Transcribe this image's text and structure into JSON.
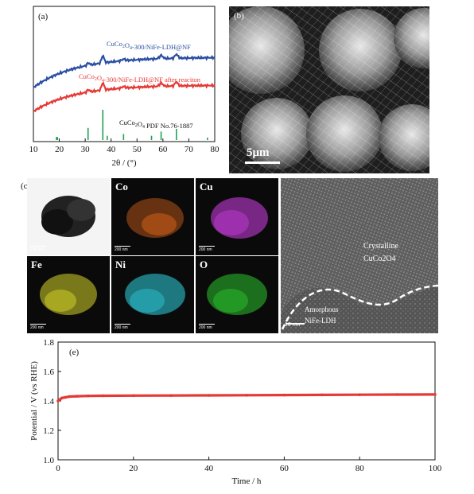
{
  "panel_a": {
    "label": "(a)",
    "xlabel": "2θ / (°)",
    "xlim": [
      10,
      80
    ],
    "xticks": [
      "10",
      "20",
      "30",
      "40",
      "50",
      "60",
      "70",
      "80"
    ],
    "series_labels": [
      {
        "text": "CuCo2O4-300/NiFe-LDH@NF",
        "color": "#2b4ea3"
      },
      {
        "text": "CuCo2O4-300/NiFe-LDH@NF after reaciton",
        "color": "#e53935"
      },
      {
        "text": "CuCo2O4 PDF No.76-1887",
        "color": "#111111"
      }
    ],
    "reference_peaks": [
      {
        "x": 18.9,
        "h": 0.1
      },
      {
        "x": 19.3,
        "h": 0.1
      },
      {
        "x": 31.1,
        "h": 0.4
      },
      {
        "x": 36.8,
        "h": 1.0
      },
      {
        "x": 38.5,
        "h": 0.14
      },
      {
        "x": 44.8,
        "h": 0.2
      },
      {
        "x": 55.6,
        "h": 0.14
      },
      {
        "x": 59.3,
        "h": 0.28
      },
      {
        "x": 65.2,
        "h": 0.37
      },
      {
        "x": 77.2,
        "h": 0.08
      }
    ]
  },
  "panel_b": {
    "label": "(b)",
    "scale_bar": "5μm"
  },
  "panel_c": {
    "label": "(c)",
    "maps": [
      {
        "name": "",
        "color": "#999999"
      },
      {
        "name": "Co",
        "color": "#d9641a"
      },
      {
        "name": "Cu",
        "color": "#c23bd6"
      },
      {
        "name": "Fe",
        "color": "#d6d62a"
      },
      {
        "name": "Ni",
        "color": "#2bc2cf"
      },
      {
        "name": "O",
        "color": "#2bc22b"
      }
    ],
    "map_scale": "200 nm",
    "hrtem_scale": "10 nm",
    "crystalline_label": "Crystalline",
    "crystalline_formula": "CuCo2O4",
    "amorphous_label": "Amorphous",
    "amorphous_formula": "NiFe-LDH"
  },
  "chart_data": {
    "type": "line",
    "title": "",
    "panel_label": "(e)",
    "xlabel": "Time / h",
    "ylabel": "Potential / V (vs RHE)",
    "xlim": [
      0,
      100
    ],
    "ylim": [
      1.0,
      1.8
    ],
    "xticks": [
      0,
      20,
      40,
      60,
      80,
      100
    ],
    "yticks": [
      1.0,
      1.2,
      1.4,
      1.6,
      1.8
    ],
    "series": [
      {
        "color": "#e53935",
        "x": [
          0,
          0.5,
          1,
          2,
          3,
          5,
          8,
          12,
          20,
          30,
          40,
          50,
          60,
          70,
          80,
          90,
          100
        ],
        "y": [
          1.4,
          1.41,
          1.42,
          1.425,
          1.43,
          1.432,
          1.434,
          1.435,
          1.436,
          1.437,
          1.438,
          1.439,
          1.44,
          1.441,
          1.442,
          1.443,
          1.444
        ]
      }
    ]
  }
}
